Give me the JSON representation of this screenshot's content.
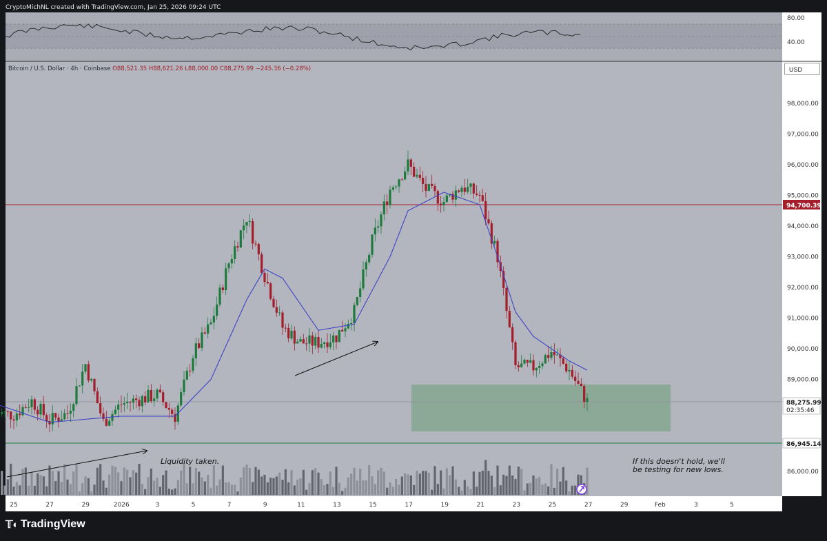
{
  "header": "CryptoMichNL created with TradingView.com, Jan 25, 2026 09:24 UTC",
  "legend": {
    "symbol": "Bitcoin / U.S. Dollar · 4h · Coinbase",
    "open": "O88,521.35",
    "high": "H88,621.26",
    "low": "L88,000.00",
    "close": "C88,275.99",
    "change": "−245.36 (−0.28%)"
  },
  "currency_button": "USD",
  "price_axis": {
    "labels": [
      "98,000.00",
      "97,000.00",
      "96,000.00",
      "95,000.00",
      "94,000.00",
      "93,000.00",
      "92,000.00",
      "91,000.00",
      "90,000.00",
      "89,000.00",
      "86,000.00"
    ],
    "resistance_tag": "94,700.39",
    "current_tag": "88,275.99",
    "countdown": "02:35:46",
    "support_tag": "86,945.14"
  },
  "rsi_axis": {
    "labels": [
      "80.00",
      "40.00"
    ]
  },
  "time_axis": [
    "25",
    "27",
    "29",
    "2026",
    "3",
    "5",
    "7",
    "9",
    "11",
    "13",
    "15",
    "17",
    "19",
    "21",
    "23",
    "25",
    "27",
    "29",
    "Feb",
    "3",
    "5"
  ],
  "annotations": {
    "liquidity": "Liquidity taken.",
    "hold_line1": "If this doesn't hold, we'll",
    "hold_line2": "be testing for new lows."
  },
  "branding": "TradingView",
  "colors": {
    "background": "#b3b6bf",
    "up": "#1e7a3c",
    "down": "#a31d2b",
    "ma": "#3d44c4",
    "resistance": "#a31d2b",
    "support": "#1e7a3c",
    "zone": "#8aa894"
  },
  "chart_data": {
    "type": "candlestick",
    "title": "Bitcoin / U.S. Dollar · 4h · Coinbase",
    "xlabel": "",
    "ylabel": "",
    "ylim": [
      85300,
      100100
    ],
    "x_range": [
      "Dec 24, 2025",
      "Feb 5, 2026"
    ],
    "series": [
      {
        "kind": "close_path",
        "points": [
          [
            "Dec 24",
            87900
          ],
          [
            "Dec 25",
            87850
          ],
          [
            "Dec 26",
            88300
          ],
          [
            "Dec 27",
            87650
          ],
          [
            "Dec 28",
            87900
          ],
          [
            "Dec 29",
            89500
          ],
          [
            "Dec 30",
            87600
          ],
          [
            "Dec 31",
            88200
          ],
          [
            "Jan 1",
            88500
          ],
          [
            "Jan 2",
            87800
          ],
          [
            "Jan 3",
            89800
          ],
          [
            "Jan 4",
            90800
          ],
          [
            "Jan 5",
            92800
          ],
          [
            "Jan 6",
            94300
          ],
          [
            "Jan 7",
            92400
          ],
          [
            "Jan 8",
            90700
          ],
          [
            "Jan 9",
            90200
          ],
          [
            "Jan 10",
            90200
          ],
          [
            "Jan 11",
            90400
          ],
          [
            "Jan 12",
            91200
          ],
          [
            "Jan 13",
            93500
          ],
          [
            "Jan 14",
            95200
          ],
          [
            "Jan 15",
            96000
          ],
          [
            "Jan 16",
            95200
          ],
          [
            "Jan 17",
            94800
          ],
          [
            "Jan 18",
            95300
          ],
          [
            "Jan 19",
            95000
          ],
          [
            "Jan 20",
            93000
          ],
          [
            "Jan 21",
            89400
          ],
          [
            "Jan 22",
            89400
          ],
          [
            "Jan 23",
            89900
          ],
          [
            "Jan 24",
            89300
          ],
          [
            "Jan 25",
            88276
          ]
        ]
      },
      {
        "kind": "moving_average",
        "points": [
          [
            "Dec 24",
            88200
          ],
          [
            "Dec 27",
            87600
          ],
          [
            "Dec 31",
            87800
          ],
          [
            "Jan 2",
            87800
          ],
          [
            "Jan 4",
            89000
          ],
          [
            "Jan 6",
            91600
          ],
          [
            "Jan 7",
            92600
          ],
          [
            "Jan 8",
            92300
          ],
          [
            "Jan 10",
            90600
          ],
          [
            "Jan 12",
            90800
          ],
          [
            "Jan 14",
            93000
          ],
          [
            "Jan 15",
            94500
          ],
          [
            "Jan 17",
            95100
          ],
          [
            "Jan 19",
            94700
          ],
          [
            "Jan 20",
            93000
          ],
          [
            "Jan 21",
            91200
          ],
          [
            "Jan 22",
            90400
          ],
          [
            "Jan 24",
            89600
          ],
          [
            "Jan 25",
            89300
          ]
        ]
      }
    ],
    "horizontal_levels": [
      94700.39,
      86945.14,
      88275.99
    ],
    "zone": {
      "from": "Jan 16",
      "to": "Jan 30",
      "low": 87550,
      "high": 88800
    },
    "rsi": {
      "ylabels": [
        80,
        40
      ]
    }
  }
}
